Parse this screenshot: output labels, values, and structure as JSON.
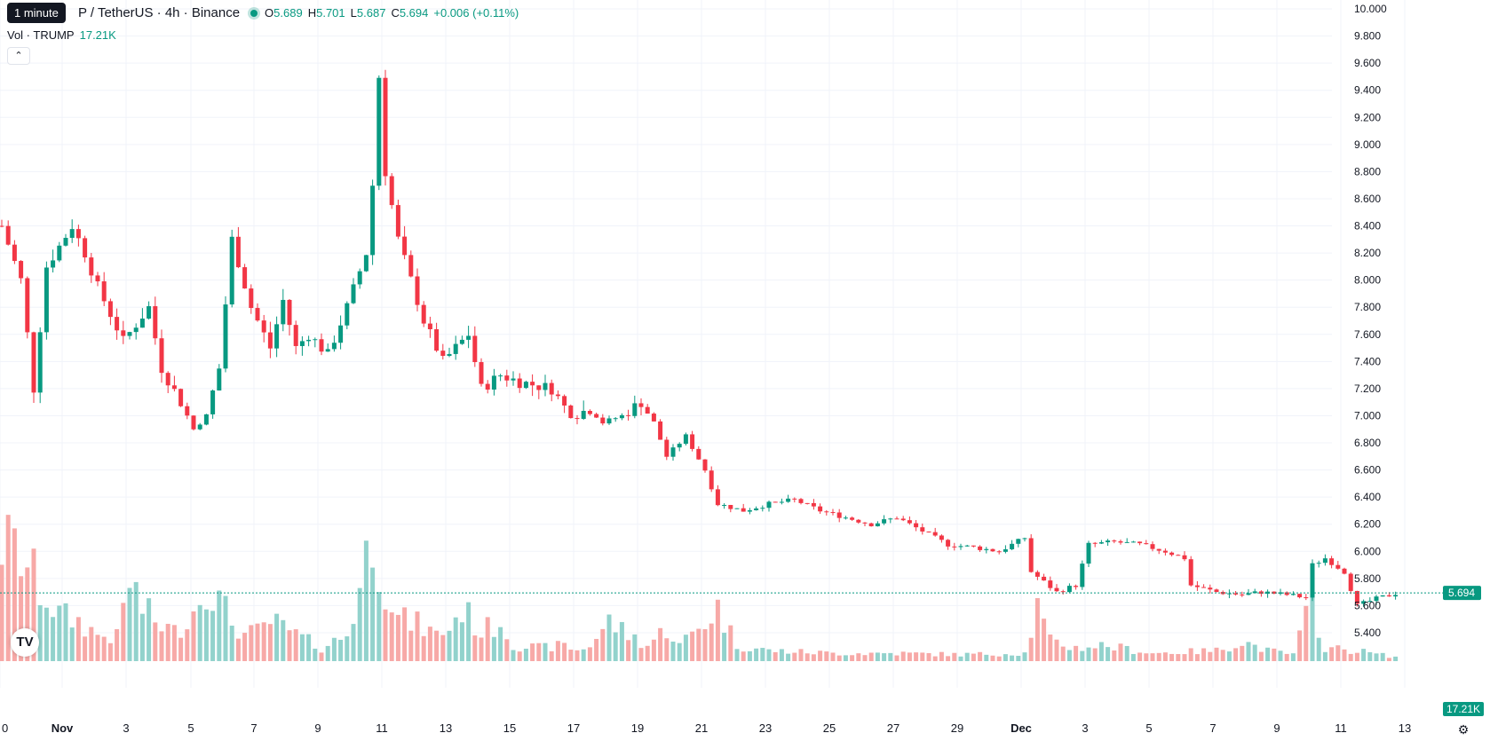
{
  "tooltip": "1 minute",
  "legend": {
    "title": "P / TetherUS · 4h · Binance",
    "o_label": "O",
    "o": "5.689",
    "h_label": "H",
    "h": "5.701",
    "l_label": "L",
    "l": "5.687",
    "c_label": "C",
    "c": "5.694",
    "change": "+0.006 (+0.11%)"
  },
  "volume_legend": {
    "label": "Vol · TRUMP",
    "value": "17.21K"
  },
  "collapse_icon": "chevron-up-icon",
  "logo_text": "TV",
  "settings_icon": "gear-icon",
  "colors": {
    "up": "#089981",
    "down": "#F23645",
    "up_vol": "#92D2CC",
    "down_vol": "#F7A9A7",
    "grid": "#F0F3FA"
  },
  "chart_data": {
    "type": "candlestick",
    "price_axis": {
      "ticks": [
        "10.000",
        "9.800",
        "9.600",
        "9.400",
        "9.200",
        "9.000",
        "8.800",
        "8.600",
        "8.400",
        "8.200",
        "8.000",
        "7.800",
        "7.600",
        "7.400",
        "7.200",
        "7.000",
        "6.800",
        "6.600",
        "6.400",
        "6.200",
        "6.000",
        "5.800",
        "5.600",
        "5.400"
      ],
      "range": [
        5.2,
        10.0
      ]
    },
    "time_axis": {
      "labels": [
        "0",
        "Nov",
        "3",
        "5",
        "7",
        "9",
        "11",
        "13",
        "15",
        "17",
        "19",
        "21",
        "23",
        "25",
        "27",
        "29",
        "Dec",
        "3",
        "5",
        "7",
        "9",
        "11",
        "13"
      ],
      "bold": [
        "Nov",
        "Dec"
      ]
    },
    "last_price": "5.694",
    "last_volume": "17.21K",
    "volume_max": 115,
    "anchors": [
      [
        0,
        8.4
      ],
      [
        3,
        8.0
      ],
      [
        5,
        7.2
      ],
      [
        7,
        8.1
      ],
      [
        11,
        8.4
      ],
      [
        13,
        8.2
      ],
      [
        15,
        7.95
      ],
      [
        19,
        7.55
      ],
      [
        23,
        7.8
      ],
      [
        25,
        7.35
      ],
      [
        28,
        7.1
      ],
      [
        30,
        6.9
      ],
      [
        32,
        7.0
      ],
      [
        34,
        7.35
      ],
      [
        36,
        8.3
      ],
      [
        39,
        7.8
      ],
      [
        42,
        7.5
      ],
      [
        44,
        7.85
      ],
      [
        46,
        7.5
      ],
      [
        48,
        7.6
      ],
      [
        51,
        7.45
      ],
      [
        54,
        7.8
      ],
      [
        57,
        8.2
      ],
      [
        58,
        8.7
      ],
      [
        59,
        9.5
      ],
      [
        60,
        8.8
      ],
      [
        62,
        8.3
      ],
      [
        66,
        7.7
      ],
      [
        69,
        7.4
      ],
      [
        73,
        7.6
      ],
      [
        75,
        7.2
      ],
      [
        78,
        7.3
      ],
      [
        81,
        7.25
      ],
      [
        86,
        7.2
      ],
      [
        89,
        7.0
      ],
      [
        92,
        7.05
      ],
      [
        94,
        6.95
      ],
      [
        97,
        7.0
      ],
      [
        100,
        7.1
      ],
      [
        102,
        6.95
      ],
      [
        104,
        6.7
      ],
      [
        107,
        6.85
      ],
      [
        110,
        6.6
      ],
      [
        112,
        6.35
      ],
      [
        116,
        6.3
      ],
      [
        120,
        6.35
      ],
      [
        124,
        6.38
      ],
      [
        128,
        6.3
      ],
      [
        132,
        6.25
      ],
      [
        136,
        6.2
      ],
      [
        140,
        6.25
      ],
      [
        144,
        6.15
      ],
      [
        148,
        6.05
      ],
      [
        152,
        6.03
      ],
      [
        156,
        6.0
      ],
      [
        160,
        6.1
      ],
      [
        161,
        5.85
      ],
      [
        165,
        5.7
      ],
      [
        168,
        5.75
      ],
      [
        170,
        6.05
      ],
      [
        174,
        6.07
      ],
      [
        178,
        6.05
      ],
      [
        182,
        6.0
      ],
      [
        185,
        5.95
      ],
      [
        186,
        5.75
      ],
      [
        190,
        5.7
      ],
      [
        194,
        5.68
      ],
      [
        197,
        5.7
      ],
      [
        201,
        5.68
      ],
      [
        204,
        5.66
      ],
      [
        205,
        5.9
      ],
      [
        207,
        5.95
      ],
      [
        210,
        5.85
      ],
      [
        212,
        5.6
      ],
      [
        215,
        5.65
      ],
      [
        218,
        5.69
      ]
    ],
    "volume_anchors": [
      [
        0,
        90
      ],
      [
        3,
        80
      ],
      [
        6,
        55
      ],
      [
        9,
        35
      ],
      [
        12,
        30
      ],
      [
        15,
        20
      ],
      [
        18,
        18
      ],
      [
        20,
        62
      ],
      [
        22,
        40
      ],
      [
        24,
        30
      ],
      [
        27,
        22
      ],
      [
        30,
        38
      ],
      [
        32,
        62
      ],
      [
        34,
        45
      ],
      [
        36,
        30
      ],
      [
        38,
        20
      ],
      [
        40,
        22
      ],
      [
        42,
        30
      ],
      [
        44,
        25
      ],
      [
        46,
        20
      ],
      [
        48,
        15
      ],
      [
        50,
        10
      ],
      [
        54,
        20
      ],
      [
        56,
        55
      ],
      [
        58,
        100
      ],
      [
        60,
        60
      ],
      [
        62,
        32
      ],
      [
        65,
        28
      ],
      [
        68,
        20
      ],
      [
        70,
        25
      ],
      [
        72,
        40
      ],
      [
        75,
        22
      ],
      [
        78,
        30
      ],
      [
        80,
        12
      ],
      [
        84,
        10
      ],
      [
        88,
        12
      ],
      [
        90,
        8
      ],
      [
        92,
        12
      ],
      [
        95,
        30
      ],
      [
        98,
        20
      ],
      [
        101,
        12
      ],
      [
        104,
        25
      ],
      [
        106,
        12
      ],
      [
        110,
        30
      ],
      [
        112,
        40
      ],
      [
        115,
        12
      ],
      [
        120,
        8
      ],
      [
        130,
        6
      ],
      [
        140,
        6
      ],
      [
        150,
        5
      ],
      [
        160,
        6
      ],
      [
        162,
        40
      ],
      [
        164,
        15
      ],
      [
        168,
        10
      ],
      [
        172,
        12
      ],
      [
        175,
        10
      ],
      [
        180,
        6
      ],
      [
        190,
        8
      ],
      [
        194,
        15
      ],
      [
        198,
        8
      ],
      [
        202,
        5
      ],
      [
        205,
        45
      ],
      [
        207,
        10
      ],
      [
        212,
        8
      ],
      [
        218,
        3
      ]
    ]
  }
}
